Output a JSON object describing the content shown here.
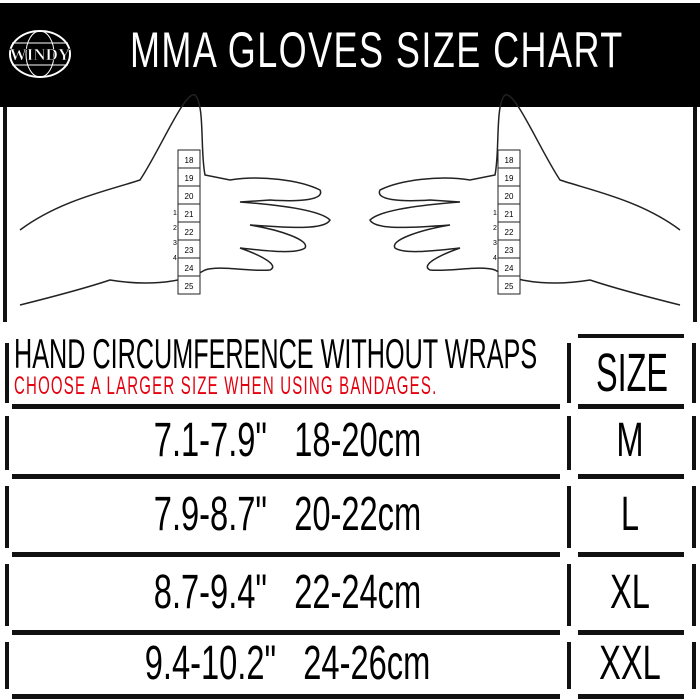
{
  "brand": {
    "logo_text": "WINDY"
  },
  "header": {
    "title": "MMA GLOVES SIZE CHART"
  },
  "tape": {
    "main": [
      "18",
      "19",
      "20",
      "21",
      "22",
      "23",
      "24",
      "25"
    ],
    "inner": [
      "1",
      "2",
      "3",
      "4"
    ]
  },
  "table": {
    "col1_header": "HAND CIRCUMFERENCE WITHOUT WRAPS",
    "note": "CHOOSE A LARGER SIZE WHEN USING BANDAGES.",
    "col2_header": "SIZE",
    "note_color": "#e3000f",
    "rows": [
      {
        "measure": "7.1-7.9\"   18-20cm",
        "size": "M"
      },
      {
        "measure": "7.9-8.7\"   20-22cm",
        "size": "L"
      },
      {
        "measure": "8.7-9.4\"   22-24cm",
        "size": "XL"
      },
      {
        "measure": "9.4-10.2\"   24-26cm",
        "size": "XXL"
      }
    ]
  }
}
